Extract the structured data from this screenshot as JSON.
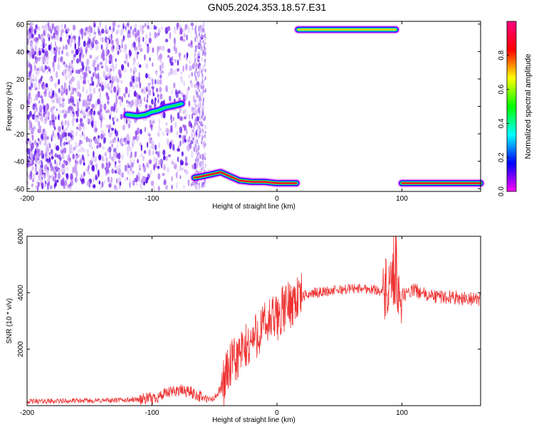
{
  "title": "GN05.2024.353.18.57.E31",
  "chart_data": [
    {
      "type": "heatmap",
      "xlabel": "Height of straight line (km)",
      "ylabel": "Frequency (Hz)",
      "xlim": [
        -200,
        163
      ],
      "ylim": [
        -62,
        62
      ],
      "x_ticks": [
        -200,
        -100,
        0,
        100
      ],
      "y_ticks": [
        -60,
        -40,
        -20,
        0,
        20,
        40,
        60
      ],
      "colorbar": {
        "label": "Normalized spectral amplitude",
        "range": [
          0,
          1
        ],
        "ticks": [
          0.0,
          0.2,
          0.4,
          0.6,
          0.8
        ],
        "colors": [
          "#ff00ff",
          "#0000ff",
          "#00ffff",
          "#00ff00",
          "#ffff00",
          "#ff0000",
          "#ff0080"
        ]
      },
      "tracks": [
        {
          "x": [
            -120,
            -112,
            -105,
            -100,
            -95,
            -90,
            -85,
            -80,
            -76
          ],
          "y": [
            -6,
            -7,
            -6,
            -4,
            -3,
            -1,
            0,
            1,
            2
          ],
          "amplitude": 0.45
        },
        {
          "x": [
            -66,
            -60,
            -55,
            -50,
            -45,
            -40,
            -35,
            -30,
            -20,
            -10,
            0,
            10,
            16
          ],
          "y": [
            -52,
            -51,
            -50,
            -49,
            -48,
            -50,
            -52,
            -54,
            -55,
            -55,
            -56,
            -56,
            -56
          ],
          "amplitude": 0.9
        },
        {
          "x": [
            17,
            30,
            50,
            70,
            85,
            95
          ],
          "y": [
            56,
            56,
            56,
            56,
            56,
            56
          ],
          "amplitude": 0.7
        },
        {
          "x": [
            100,
            120,
            140,
            163
          ],
          "y": [
            -56,
            -56,
            -56,
            -56
          ],
          "amplitude": 0.9
        }
      ],
      "noise_region": {
        "x": [
          -200,
          -58
        ],
        "ylim": [
          -62,
          62
        ]
      }
    },
    {
      "type": "line",
      "xlabel": "Height of straight line (km)",
      "ylabel": "SNR (10 * v/v)",
      "xlim": [
        -200,
        163
      ],
      "ylim": [
        0,
        6000
      ],
      "x_ticks": [
        -200,
        -100,
        0,
        100
      ],
      "y_ticks": [
        2000,
        4000,
        6000
      ],
      "color": "#ee3333",
      "series": [
        {
          "x": [
            -200,
            -180,
            -160,
            -140,
            -120,
            -100,
            -90,
            -80,
            -70,
            -60,
            -55,
            -50,
            -45,
            -40,
            -35,
            -30,
            -25,
            -20,
            -15,
            -10,
            -5,
            0,
            5,
            10,
            15,
            20,
            25,
            30,
            40,
            50,
            60,
            70,
            80,
            85,
            90,
            93,
            95,
            97,
            100,
            105,
            110,
            120,
            130,
            140,
            150,
            163
          ],
          "y": [
            150,
            160,
            170,
            180,
            200,
            250,
            400,
            550,
            500,
            300,
            200,
            250,
            600,
            1200,
            1500,
            1800,
            2000,
            2300,
            2600,
            2800,
            3000,
            3100,
            3400,
            3600,
            3800,
            3850,
            3950,
            4000,
            4050,
            4100,
            4150,
            4150,
            4100,
            4050,
            4000,
            4200,
            4500,
            4200,
            3900,
            4000,
            4100,
            3900,
            3850,
            3850,
            3800,
            3750
          ]
        }
      ]
    }
  ]
}
